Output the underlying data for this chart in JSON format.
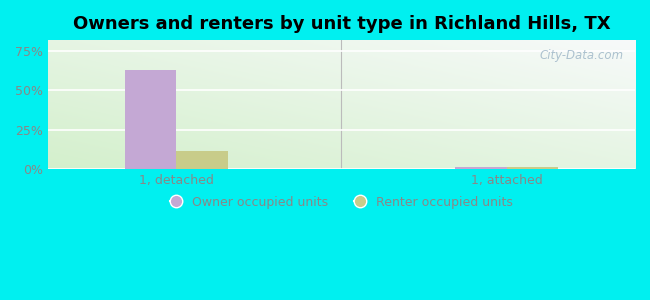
{
  "title": "Owners and renters by unit type in Richland Hills, TX",
  "categories": [
    "1, detached",
    "1, attached"
  ],
  "owner_values": [
    63.0,
    1.0
  ],
  "renter_values": [
    11.5,
    1.0
  ],
  "owner_color": "#c4a8d4",
  "renter_color": "#c8cc8a",
  "yticks": [
    0,
    25,
    50,
    75
  ],
  "ytick_labels": [
    "0%",
    "25%",
    "50%",
    "75%"
  ],
  "ylim": [
    0,
    82
  ],
  "bar_width": 0.28,
  "watermark": "City-Data.com",
  "legend_labels": [
    "Owner occupied units",
    "Renter occupied units"
  ],
  "title_fontsize": 13,
  "tick_fontsize": 9,
  "legend_fontsize": 9,
  "cyan_bg": "#00f0f0",
  "grid_color": "#e8e8f0",
  "tick_color": "#888888",
  "x_positions": [
    0.6,
    2.4
  ],
  "x_lim": [
    -0.1,
    3.1
  ],
  "divider_x": 1.5
}
